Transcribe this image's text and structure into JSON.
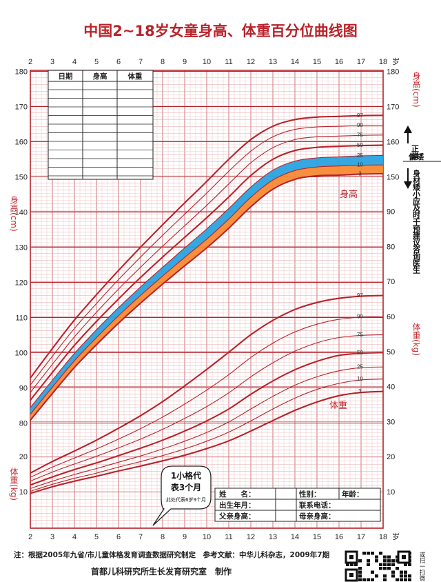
{
  "title": "中国2~18岁女童身高、体重百分位曲线图",
  "age_unit": "岁",
  "labels": {
    "height_right": "身高(cm)",
    "height_left": "身高(cm)",
    "weight_right": "体重(kg)",
    "weight_left": "体重(kg)",
    "height_curve": "身高",
    "weight_curve": "体重",
    "normal": "正常",
    "short": "偏矮",
    "advice": "身材矮小应及时干预建议咨询医生"
  },
  "record_table": {
    "headers": [
      "日期",
      "身高",
      "体重"
    ]
  },
  "callout": {
    "line1": "1小格代",
    "line2": "表3个月",
    "line3": "此处代表6岁9个月"
  },
  "info_table": {
    "name": "姓　　名：",
    "sex": "性别：",
    "age": "年龄：",
    "birth": "出生年月：",
    "phone": "联系电话：",
    "father": "父亲身高：",
    "mother": "母亲身高："
  },
  "footer": {
    "note": "注：根据2005年九省/市儿童体格发育调查数据研究制定　参考文献：中华儿科杂志，2009年7期",
    "maker": "首都儿科研究所生长发育研究室　制作",
    "qr_side": "或扫一扫微"
  },
  "colors": {
    "red": "#b8232a",
    "blue": "#2aa3e0",
    "orange": "#f58a35",
    "grid": "#d9888a"
  },
  "chart_data": {
    "type": "line",
    "x_label": "年龄(岁)",
    "x_range": [
      2,
      18
    ],
    "x_ticks": [
      2,
      3,
      4,
      5,
      6,
      7,
      8,
      9,
      10,
      11,
      12,
      13,
      14,
      15,
      16,
      17,
      18
    ],
    "height_axis": {
      "label": "身高(cm)",
      "range": [
        76,
        180
      ],
      "ticks": [
        80,
        90,
        100,
        110,
        120,
        130,
        140,
        150,
        160,
        170,
        180
      ]
    },
    "weight_axis": {
      "label": "体重(kg)",
      "range": [
        5,
        90
      ],
      "ticks": [
        10,
        20,
        30,
        40,
        50,
        60,
        70,
        80,
        90
      ]
    },
    "percentiles": [
      "3",
      "10",
      "25",
      "50",
      "75",
      "90",
      "97"
    ],
    "ages": [
      2,
      3,
      4,
      5,
      6,
      7,
      8,
      9,
      10,
      11,
      12,
      13,
      14,
      15,
      16,
      17,
      18
    ],
    "height_series": [
      {
        "name": "3",
        "values": [
          80.8,
          88.4,
          95.8,
          102.3,
          108.4,
          114.1,
          119.5,
          124.7,
          129.8,
          135.4,
          141.5,
          146.5,
          149.3,
          150.3,
          150.5,
          150.8,
          150.9
        ]
      },
      {
        "name": "10",
        "values": [
          82.5,
          90.2,
          97.7,
          104.3,
          110.5,
          116.3,
          121.8,
          127.1,
          132.3,
          138.0,
          144.2,
          149.1,
          151.8,
          152.8,
          153.1,
          153.3,
          153.4
        ]
      },
      {
        "name": "25",
        "values": [
          84.4,
          92.2,
          99.8,
          106.5,
          112.8,
          118.7,
          124.3,
          129.8,
          135.2,
          141.0,
          147.1,
          151.9,
          154.5,
          155.4,
          155.7,
          156.0,
          156.1
        ]
      },
      {
        "name": "50",
        "values": [
          86.5,
          94.4,
          102.1,
          108.9,
          115.3,
          121.4,
          127.2,
          132.8,
          138.4,
          144.3,
          150.4,
          155.0,
          157.5,
          158.4,
          158.7,
          158.9,
          159.0
        ]
      },
      {
        "name": "75",
        "values": [
          88.7,
          96.7,
          104.5,
          111.5,
          118.1,
          124.3,
          130.3,
          136.1,
          141.9,
          148.0,
          154.0,
          158.3,
          160.6,
          161.4,
          161.6,
          161.8,
          161.9
        ]
      },
      {
        "name": "90",
        "values": [
          90.8,
          99.0,
          106.9,
          114.0,
          120.8,
          127.2,
          133.4,
          139.4,
          145.4,
          151.6,
          157.3,
          161.4,
          163.5,
          164.2,
          164.4,
          164.6,
          164.7
        ]
      },
      {
        "name": "97",
        "values": [
          92.8,
          101.2,
          109.3,
          116.5,
          123.4,
          130.0,
          136.4,
          142.6,
          148.7,
          155.0,
          160.6,
          164.4,
          166.3,
          167.0,
          167.2,
          167.4,
          167.5
        ]
      }
    ],
    "weight_series": [
      {
        "name": "3",
        "values": [
          9.5,
          11.4,
          13.0,
          14.4,
          15.9,
          17.3,
          18.8,
          20.4,
          22.3,
          24.5,
          27.3,
          30.3,
          33.2,
          35.6,
          37.4,
          38.3,
          38.6
        ]
      },
      {
        "name": "10",
        "values": [
          10.1,
          12.1,
          13.8,
          15.3,
          17.0,
          18.6,
          20.3,
          22.2,
          24.4,
          27.0,
          30.2,
          33.6,
          36.7,
          39.2,
          40.9,
          41.9,
          42.2
        ]
      },
      {
        "name": "25",
        "values": [
          10.9,
          13.0,
          14.9,
          16.6,
          18.4,
          20.2,
          22.2,
          24.4,
          26.9,
          29.9,
          33.6,
          37.2,
          40.4,
          42.8,
          44.5,
          45.4,
          45.6
        ]
      },
      {
        "name": "50",
        "values": [
          11.9,
          14.2,
          16.3,
          18.2,
          20.3,
          22.4,
          24.7,
          27.3,
          30.2,
          33.6,
          37.8,
          41.6,
          44.8,
          47.2,
          48.9,
          49.5,
          49.7
        ]
      },
      {
        "name": "75",
        "values": [
          13.0,
          15.6,
          17.9,
          20.1,
          22.5,
          25.0,
          27.8,
          30.9,
          34.3,
          38.2,
          42.8,
          46.8,
          50.1,
          52.5,
          54.0,
          54.6,
          54.8
        ]
      },
      {
        "name": "90",
        "values": [
          14.1,
          17.0,
          19.6,
          22.2,
          25.0,
          28.0,
          31.3,
          35.0,
          39.0,
          43.4,
          48.3,
          52.4,
          55.6,
          57.8,
          59.2,
          59.8,
          60.0
        ]
      },
      {
        "name": "97",
        "values": [
          15.3,
          18.6,
          21.6,
          24.7,
          28.1,
          31.7,
          35.7,
          40.2,
          44.9,
          49.8,
          54.8,
          58.9,
          62.0,
          64.0,
          65.2,
          65.8,
          66.0
        ]
      }
    ]
  }
}
